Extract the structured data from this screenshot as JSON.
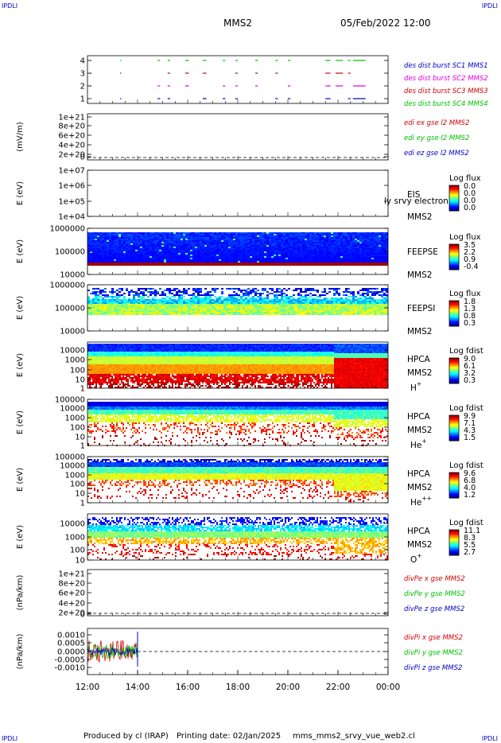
{
  "header": {
    "corner_tl": "IPDLI",
    "corner_tr": "IPDLI",
    "corner_bl": "IPDLI",
    "corner_br": "IPDLI",
    "spacecraft": "MMS2",
    "date": "05/Feb/2022 12:00"
  },
  "footer": {
    "produced": "Produced by cl (IRAP)",
    "printing": "Printing date: 02/Jan/2025",
    "file": "mms_mms2_srvy_vue_web2.cl"
  },
  "colors": {
    "red": "#d00000",
    "magenta": "#e000e0",
    "blue": "#0000c8",
    "green": "#00c000"
  },
  "chart_data": {
    "type": "spectrogram-stack",
    "x_ticks": [
      "12:00",
      "14:00",
      "16:00",
      "18:00",
      "20:00",
      "22:00",
      "00:00"
    ],
    "panels": [
      {
        "id": "burst",
        "type": "event-dashes",
        "ytick_labels": [
          "4",
          "3",
          "2",
          "1"
        ],
        "ylim": [
          0.5,
          4.5
        ],
        "legend": [
          {
            "text": "des dist burst SC1 MMS1",
            "color": "#0000c8"
          },
          {
            "text": "des dist burst SC2 MMS2",
            "color": "#e000e0"
          },
          {
            "text": "des dist burst SC3 MMS3",
            "color": "#d00000"
          },
          {
            "text": "des dist burst SC4 MMS4",
            "color": "#00c000"
          }
        ]
      },
      {
        "id": "edi",
        "type": "line",
        "ylabel": "(mV/m)",
        "ytick_labels": [
          "1e+21",
          "8e+20",
          "6e+20",
          "4e+20",
          "2e+20",
          "0"
        ],
        "ylim": [
          0,
          1e+21
        ],
        "legend": [
          {
            "text": "edi ex gse l2 MMS2",
            "color": "#d00000"
          },
          {
            "text": "edi ey gse l2 MMS2",
            "color": "#00c000"
          },
          {
            "text": "edi ez gse l2 MMS2",
            "color": "#0000c8"
          }
        ]
      },
      {
        "id": "eis",
        "type": "heatmap",
        "ylabel": "E (eV)",
        "ytick_labels": [
          "1e+07",
          "1e+06",
          "1e+05",
          "1e+04"
        ],
        "ylim": [
          10000.0,
          10000000.0
        ],
        "labels": [
          "EIS",
          "MMS2"
        ],
        "overlay": "ly srvy electron to",
        "cbar_title": "Log flux",
        "cbar_ticks": [
          "0.0",
          "0.0",
          "0.0",
          "0.0"
        ]
      },
      {
        "id": "feepse",
        "type": "heatmap",
        "ylabel": "E (eV)",
        "ytick_labels": [
          "1000000",
          "100000",
          "10000"
        ],
        "ylim": [
          10000.0,
          1000000.0
        ],
        "labels": [
          "FEEPSE",
          "MMS2"
        ],
        "cbar_title": "Log flux",
        "cbar_ticks": [
          "3.5",
          "2.2",
          "0.9",
          "-0.4"
        ]
      },
      {
        "id": "feepsi",
        "type": "heatmap",
        "ylabel": "E (eV)",
        "ytick_labels": [
          "1000000",
          "100000",
          "10000"
        ],
        "ylim": [
          10000.0,
          1000000.0
        ],
        "labels": [
          "FEEPSI",
          "MMS2"
        ],
        "cbar_title": "Log flux",
        "cbar_ticks": [
          "1.8",
          "1.3",
          "0.8",
          "0.3"
        ]
      },
      {
        "id": "hpca-h",
        "type": "heatmap",
        "ylabel": "E (eV)",
        "ytick_labels": [
          "10000",
          "1000",
          "100",
          "10",
          "1"
        ],
        "ylim": [
          1,
          10000.0
        ],
        "labels": [
          "HPCA",
          "MMS2"
        ],
        "species": "H",
        "species_sup": "+",
        "cbar_title": "Log fdist",
        "cbar_ticks": [
          "9.0",
          "6.1",
          "3.2",
          "0.3"
        ]
      },
      {
        "id": "hpca-he",
        "type": "heatmap",
        "ylabel": "E (eV)",
        "ytick_labels": [
          "100000",
          "10000",
          "1000",
          "100",
          "10",
          "1"
        ],
        "ylim": [
          1,
          100000.0
        ],
        "labels": [
          "HPCA",
          "MMS2"
        ],
        "species": "He",
        "species_sup": "+",
        "cbar_title": "Log fdist",
        "cbar_ticks": [
          "9.9",
          "7.1",
          "4.3",
          "1.5"
        ]
      },
      {
        "id": "hpca-hepp",
        "type": "heatmap",
        "ylabel": "E (eV)",
        "ytick_labels": [
          "100000",
          "10000",
          "1000",
          "100",
          "10",
          "1"
        ],
        "ylim": [
          1,
          100000.0
        ],
        "labels": [
          "HPCA",
          "MMS2"
        ],
        "species": "He",
        "species_sup": "++",
        "cbar_title": "Log fdist",
        "cbar_ticks": [
          "9.6",
          "6.8",
          "4.0",
          "1.2"
        ]
      },
      {
        "id": "hpca-o",
        "type": "heatmap",
        "ylabel": "E (eV)",
        "ytick_labels": [
          "10000",
          "1000",
          "100",
          "10"
        ],
        "ylim": [
          1,
          100000.0
        ],
        "labels": [
          "HPCA",
          "MMS2"
        ],
        "species": "O",
        "species_sup": "+",
        "cbar_title": "Log fdist",
        "cbar_ticks": [
          "11.1",
          "8.3",
          "5.5",
          "2.7"
        ]
      },
      {
        "id": "divpe",
        "type": "line",
        "ylabel": "(nPa/km)",
        "ytick_labels": [
          "1e+21",
          "8e+20",
          "6e+20",
          "4e+20",
          "2e+20",
          "0"
        ],
        "ylim": [
          0,
          1e+21
        ],
        "legend": [
          {
            "text": "divPe x gse MMS2",
            "color": "#d00000"
          },
          {
            "text": "divPe y gse MMS2",
            "color": "#00c000"
          },
          {
            "text": "divPe z gse MMS2",
            "color": "#0000c8"
          }
        ]
      },
      {
        "id": "divpi",
        "type": "line",
        "ylabel": "(nPa/km)",
        "ytick_labels": [
          "0.0010",
          "0.0005",
          "0.0000",
          "-0.0005",
          "-0.0010"
        ],
        "ylim": [
          -0.0014,
          0.0014
        ],
        "legend": [
          {
            "text": "divPi x gse MMS2",
            "color": "#d00000"
          },
          {
            "text": "divPi y gse MMS2",
            "color": "#00c000"
          },
          {
            "text": "divPi z gse MMS2",
            "color": "#0000c8"
          }
        ]
      }
    ]
  }
}
